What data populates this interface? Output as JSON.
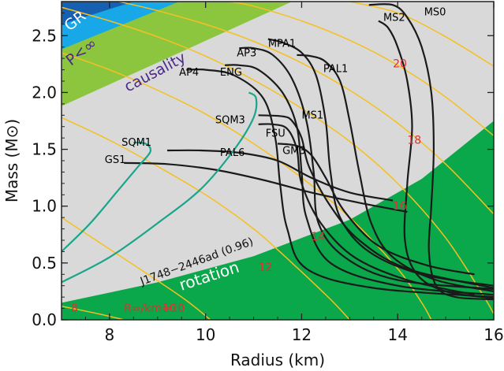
{
  "chart_data": {
    "type": "line",
    "xlabel": "Radius (km)",
    "ylabel": "Mass (M⊙)",
    "xlim": [
      7,
      16
    ],
    "ylim": [
      0,
      2.8
    ],
    "x_ticks": [
      "8",
      "10",
      "12",
      "14",
      "16"
    ],
    "y_ticks": [
      "0.0",
      "0.5",
      "1.0",
      "1.5",
      "2.0",
      "2.5"
    ],
    "grid": false,
    "colors": {
      "allowed_region": "#d9d9d9",
      "gr_region": "#1560b0",
      "finite_pressure_region": "#18a8e8",
      "causality_region": "#8cc63f",
      "rotation_region": "#0aa84a",
      "rotation_curve_of_rotation": "#00a050",
      "nucleon_eos": "#1a1a1a",
      "strange_quark_eos": "#1aa58a",
      "omega_contours": "#f5c020",
      "omega_labels": "#e03030"
    },
    "regions": [
      {
        "name": "GR",
        "label": "GR",
        "label_color": "#ffffff",
        "boundary": [
          [
            7,
            2.6
          ],
          [
            8.5,
            2.8
          ]
        ]
      },
      {
        "name": "P<∞",
        "label": "P<∞",
        "label_color": "#4a2a8a",
        "boundary": [
          [
            7,
            2.38
          ],
          [
            9.45,
            2.8
          ]
        ]
      },
      {
        "name": "causality",
        "label": "causality",
        "label_color": "#4a2a8a",
        "boundary": [
          [
            7,
            1.88
          ],
          [
            11.8,
            2.8
          ]
        ]
      },
      {
        "name": "rotation",
        "label": "rotation",
        "label_color": "#ffffff",
        "boundary": [
          [
            7,
            0.15
          ],
          [
            9,
            0.33
          ],
          [
            11,
            0.56
          ],
          [
            13,
            0.88
          ],
          [
            14.5,
            1.24
          ],
          [
            16,
            1.75
          ]
        ]
      }
    ],
    "rotation_annotation": "J1748−2446ad (0.96)",
    "radius_label": "R∞/km=10",
    "omega_contours": [
      {
        "label": "8",
        "label_at": [
          7.2,
          0.07
        ],
        "points": [
          [
            7,
            0.12
          ],
          [
            7.8,
            0.05
          ],
          [
            8.3,
            0.0
          ]
        ]
      },
      {
        "label": "10",
        "label_at": [
          9.1,
          0.07
        ],
        "points": [
          [
            7,
            0.9
          ],
          [
            7.9,
            0.65
          ],
          [
            8.8,
            0.4
          ],
          [
            9.6,
            0.17
          ],
          [
            10.1,
            0.0
          ]
        ]
      },
      {
        "label": "12",
        "label_at": [
          11.1,
          0.43
        ],
        "points": [
          [
            7,
            1.78
          ],
          [
            8,
            1.58
          ],
          [
            9,
            1.35
          ],
          [
            10,
            1.1
          ],
          [
            11,
            0.8
          ],
          [
            11.8,
            0.5
          ],
          [
            12.6,
            0.18
          ],
          [
            13.0,
            0.0
          ]
        ]
      },
      {
        "label": "14",
        "label_at": [
          12.2,
          0.7
        ],
        "points": [
          [
            7,
            2.35
          ],
          [
            8,
            2.2
          ],
          [
            9,
            2.02
          ],
          [
            10,
            1.81
          ],
          [
            11,
            1.55
          ],
          [
            12,
            1.25
          ],
          [
            13,
            0.9
          ],
          [
            14,
            0.45
          ],
          [
            14.5,
            0.15
          ],
          [
            14.7,
            0.0
          ]
        ]
      },
      {
        "label": "16",
        "label_at": [
          13.9,
          0.97
        ],
        "points": [
          [
            7,
            2.75
          ],
          [
            8,
            2.63
          ],
          [
            9,
            2.49
          ],
          [
            10,
            2.32
          ],
          [
            11,
            2.11
          ],
          [
            12,
            1.86
          ],
          [
            13,
            1.57
          ],
          [
            14,
            1.2
          ],
          [
            15,
            0.72
          ],
          [
            15.8,
            0.2
          ],
          [
            16,
            0.05
          ]
        ]
      },
      {
        "label": "18",
        "label_at": [
          14.2,
          1.55
        ],
        "points": [
          [
            8.2,
            2.8
          ],
          [
            9,
            2.72
          ],
          [
            10,
            2.6
          ],
          [
            11,
            2.45
          ],
          [
            12,
            2.26
          ],
          [
            13,
            2.02
          ],
          [
            14,
            1.73
          ],
          [
            15,
            1.37
          ],
          [
            16,
            0.93
          ]
        ]
      },
      {
        "label": "20",
        "label_at": [
          13.9,
          2.22
        ],
        "points": [
          [
            10.5,
            2.8
          ],
          [
            11,
            2.76
          ],
          [
            12,
            2.63
          ],
          [
            13,
            2.46
          ],
          [
            14,
            2.24
          ],
          [
            15,
            1.96
          ],
          [
            16,
            1.62
          ]
        ]
      },
      {
        "label": "",
        "label_at": null,
        "points": [
          [
            13.0,
            2.8
          ],
          [
            14,
            2.7
          ],
          [
            15,
            2.49
          ],
          [
            16,
            2.23
          ]
        ]
      }
    ],
    "series": [
      {
        "name": "MS0",
        "label_at": [
          14.55,
          2.68
        ],
        "kind": "nucleon",
        "points": [
          [
            16.0,
            0.18
          ],
          [
            15.2,
            0.2
          ],
          [
            14.8,
            0.3
          ],
          [
            14.65,
            0.6
          ],
          [
            14.7,
            1.0
          ],
          [
            14.75,
            1.5
          ],
          [
            14.7,
            2.0
          ],
          [
            14.5,
            2.4
          ],
          [
            14.2,
            2.66
          ],
          [
            13.9,
            2.77
          ],
          [
            13.4,
            2.77
          ]
        ]
      },
      {
        "name": "MS2",
        "label_at": [
          13.7,
          2.63
        ],
        "kind": "nucleon",
        "points": [
          [
            16.0,
            0.19
          ],
          [
            15.0,
            0.25
          ],
          [
            14.4,
            0.4
          ],
          [
            14.15,
            0.7
          ],
          [
            14.2,
            1.2
          ],
          [
            14.3,
            1.7
          ],
          [
            14.2,
            2.1
          ],
          [
            14.0,
            2.4
          ],
          [
            13.8,
            2.57
          ],
          [
            13.6,
            2.63
          ]
        ]
      },
      {
        "name": "PAL1",
        "label_at": [
          12.45,
          2.18
        ],
        "kind": "nucleon",
        "points": [
          [
            16.0,
            0.25
          ],
          [
            14.8,
            0.35
          ],
          [
            13.9,
            0.55
          ],
          [
            13.45,
            0.85
          ],
          [
            13.2,
            1.3
          ],
          [
            13.0,
            1.75
          ],
          [
            12.8,
            2.1
          ],
          [
            12.5,
            2.27
          ],
          [
            12.2,
            2.32
          ],
          [
            11.9,
            2.33
          ]
        ]
      },
      {
        "name": "MPA1",
        "label_at": [
          11.3,
          2.4
        ],
        "kind": "nucleon",
        "points": [
          [
            16.0,
            0.3
          ],
          [
            14.5,
            0.4
          ],
          [
            13.4,
            0.6
          ],
          [
            12.8,
            0.9
          ],
          [
            12.6,
            1.3
          ],
          [
            12.5,
            1.75
          ],
          [
            12.3,
            2.15
          ],
          [
            12.0,
            2.35
          ],
          [
            11.6,
            2.44
          ],
          [
            11.3,
            2.47
          ]
        ]
      },
      {
        "name": "AP3",
        "label_at": [
          10.65,
          2.32
        ],
        "kind": "nucleon",
        "points": [
          [
            16.0,
            0.27
          ],
          [
            14.0,
            0.35
          ],
          [
            12.9,
            0.55
          ],
          [
            12.35,
            0.85
          ],
          [
            12.25,
            1.3
          ],
          [
            12.1,
            1.75
          ],
          [
            11.8,
            2.12
          ],
          [
            11.4,
            2.33
          ],
          [
            11.0,
            2.39
          ],
          [
            10.7,
            2.39
          ]
        ]
      },
      {
        "name": "ENG",
        "label_at": [
          10.3,
          2.15
        ],
        "kind": "nucleon",
        "points": [
          [
            16.0,
            0.22
          ],
          [
            14.0,
            0.3
          ],
          [
            12.6,
            0.5
          ],
          [
            12.1,
            0.9
          ],
          [
            12.0,
            1.3
          ],
          [
            11.9,
            1.7
          ],
          [
            11.6,
            2.0
          ],
          [
            11.1,
            2.2
          ],
          [
            10.7,
            2.24
          ],
          [
            10.4,
            2.24
          ]
        ]
      },
      {
        "name": "AP4",
        "label_at": [
          9.45,
          2.15
        ],
        "kind": "nucleon",
        "points": [
          [
            16.0,
            0.2
          ],
          [
            13.5,
            0.28
          ],
          [
            12.1,
            0.45
          ],
          [
            11.7,
            0.8
          ],
          [
            11.55,
            1.2
          ],
          [
            11.45,
            1.6
          ],
          [
            11.2,
            1.95
          ],
          [
            10.6,
            2.15
          ],
          [
            10.0,
            2.2
          ],
          [
            9.6,
            2.2
          ]
        ]
      },
      {
        "name": "MS1",
        "label_at": [
          12.0,
          1.77
        ],
        "kind": "nucleon",
        "points": [
          [
            16.0,
            0.28
          ],
          [
            14.2,
            0.45
          ],
          [
            13.2,
            0.7
          ],
          [
            12.6,
            1.0
          ],
          [
            12.15,
            1.35
          ],
          [
            12.0,
            1.6
          ],
          [
            11.8,
            1.75
          ],
          [
            11.6,
            1.79
          ],
          [
            11.1,
            1.8
          ]
        ]
      },
      {
        "name": "FSU",
        "label_at": [
          11.25,
          1.61
        ],
        "kind": "nucleon",
        "points": [
          [
            15.6,
            0.22
          ],
          [
            14.2,
            0.35
          ],
          [
            13.1,
            0.55
          ],
          [
            12.4,
            0.85
          ],
          [
            12.0,
            1.2
          ],
          [
            11.9,
            1.5
          ],
          [
            11.7,
            1.68
          ],
          [
            11.4,
            1.72
          ],
          [
            11.1,
            1.72
          ]
        ]
      },
      {
        "name": "GM3",
        "label_at": [
          11.6,
          1.46
        ],
        "kind": "nucleon",
        "points": [
          [
            15.6,
            0.4
          ],
          [
            14.6,
            0.48
          ],
          [
            13.6,
            0.65
          ],
          [
            12.9,
            0.95
          ],
          [
            12.5,
            1.25
          ],
          [
            12.2,
            1.45
          ],
          [
            11.9,
            1.53
          ],
          [
            11.5,
            1.55
          ]
        ]
      },
      {
        "name": "PAL6",
        "label_at": [
          10.3,
          1.44
        ],
        "kind": "nucleon",
        "points": [
          [
            13.9,
            1.05
          ],
          [
            13.0,
            1.12
          ],
          [
            12.2,
            1.25
          ],
          [
            11.5,
            1.4
          ],
          [
            10.7,
            1.47
          ],
          [
            9.9,
            1.49
          ],
          [
            9.2,
            1.49
          ]
        ]
      },
      {
        "name": "GS1",
        "label_at": [
          7.9,
          1.38
        ],
        "kind": "nucleon",
        "points": [
          [
            14.2,
            0.95
          ],
          [
            13.2,
            1.03
          ],
          [
            12.2,
            1.12
          ],
          [
            11.2,
            1.23
          ],
          [
            10.2,
            1.32
          ],
          [
            9.2,
            1.37
          ],
          [
            8.3,
            1.38
          ]
        ]
      },
      {
        "name": "SQM1",
        "label_at": [
          8.25,
          1.53
        ],
        "kind": "strange",
        "points": [
          [
            7.0,
            0.6
          ],
          [
            7.6,
            0.85
          ],
          [
            8.2,
            1.15
          ],
          [
            8.6,
            1.35
          ],
          [
            8.85,
            1.48
          ],
          [
            8.75,
            1.55
          ],
          [
            8.5,
            1.56
          ]
        ]
      },
      {
        "name": "SQM3",
        "label_at": [
          10.2,
          1.73
        ],
        "kind": "strange",
        "points": [
          [
            7.0,
            0.33
          ],
          [
            8.0,
            0.55
          ],
          [
            9.0,
            0.85
          ],
          [
            9.9,
            1.15
          ],
          [
            10.6,
            1.5
          ],
          [
            11.0,
            1.78
          ],
          [
            11.05,
            1.95
          ],
          [
            10.9,
            2.0
          ]
        ]
      }
    ]
  }
}
